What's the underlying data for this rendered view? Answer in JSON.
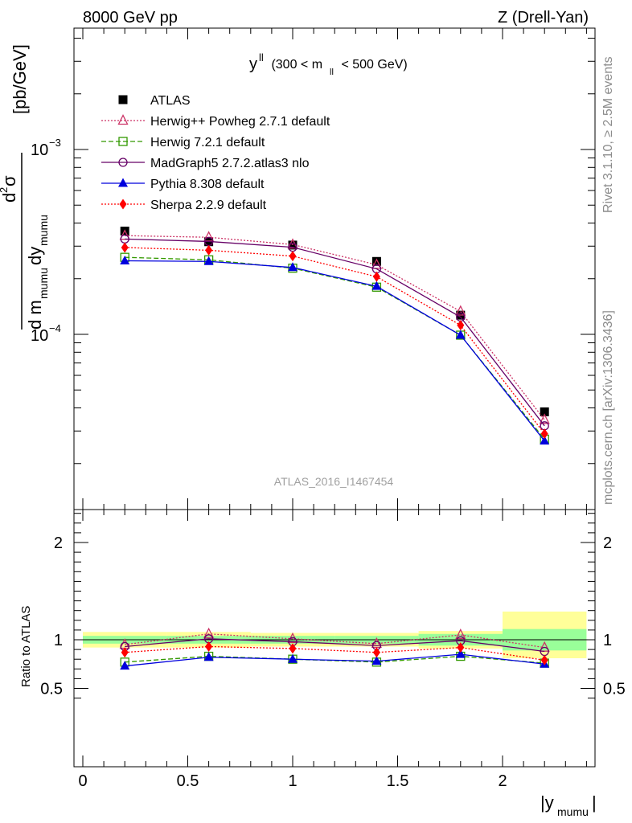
{
  "header": {
    "left": "8000 GeV pp",
    "right": "Z (Drell-Yan)"
  },
  "side": {
    "rivet": "Rivet 3.1.10, ≥ 2.5M events",
    "mcplots": "mcplots.cern.ch [arXiv:1306.3436]"
  },
  "inner_title": {
    "main": "y",
    "sup": "ll",
    "range_a": " (300 < m",
    "range_sub": "ll",
    "range_b": " < 500 GeV)"
  },
  "ylabel": {
    "unit": "[pb/GeV]"
  },
  "ratio_ylabel": "Ratio to ATLAS",
  "watermark": "ATLAS_2016_I1467454",
  "colors": {
    "band_outer": "#ffff99",
    "band_inner": "#99ff99"
  },
  "chart_data": [
    {
      "type": "line",
      "title": "",
      "yscale": "log",
      "xlim": [
        -0.05,
        2.45
      ],
      "ylim": [
        1.5e-05,
        0.0045
      ],
      "ytick_labels": [
        "10^-4",
        "10^-3"
      ],
      "x": [
        0.2,
        0.6,
        1.0,
        1.4,
        1.8,
        2.2
      ],
      "series": [
        {
          "name": "ATLAS",
          "color": "#000000",
          "marker": "square-filled",
          "line": "none",
          "values": [
            0.000362,
            0.000317,
            0.000304,
            0.000248,
            0.000127,
            3.81e-05
          ]
        },
        {
          "name": "Herwig++ Powheg 2.7.1 default",
          "color": "#cc3366",
          "marker": "triangle-open",
          "line": "dotted",
          "values": [
            0.000342,
            0.000335,
            0.000306,
            0.000238,
            0.000133,
            3.45e-05
          ]
        },
        {
          "name": "Herwig 7.2.1 default",
          "color": "#339900",
          "marker": "square-open",
          "line": "dashed",
          "values": [
            0.000261,
            0.000253,
            0.000228,
            0.00018,
            9.9e-05,
            2.71e-05
          ]
        },
        {
          "name": "MadGraph5 2.7.2.atlas3 nlo",
          "color": "#660066",
          "marker": "circle-open",
          "line": "solid",
          "values": [
            0.000328,
            0.000318,
            0.000296,
            0.000226,
            0.000124,
            3.2e-05
          ]
        },
        {
          "name": "Pythia 8.308 default",
          "color": "#0000dd",
          "marker": "triangle-filled",
          "line": "solid",
          "values": [
            0.00025,
            0.000248,
            0.00023,
            0.000182,
            9.9e-05,
            2.65e-05
          ]
        },
        {
          "name": "Sherpa 2.2.9 default",
          "color": "#ff0000",
          "marker": "diamond-filled",
          "line": "dotted",
          "values": [
            0.000295,
            0.000285,
            0.000265,
            0.000205,
            0.000112,
            2.9e-05
          ]
        }
      ]
    },
    {
      "type": "line",
      "title": "",
      "ylabel": "Ratio to ATLAS",
      "xlabel": "|y_mumu|",
      "xlim": [
        -0.05,
        2.45
      ],
      "ylim": [
        0.35,
        2.35
      ],
      "x_ticks": [
        0,
        0.5,
        1,
        1.5,
        2
      ],
      "x_tick_labels": [
        "0",
        "0.5",
        "1",
        "1.5",
        "2"
      ],
      "y_ticks": [
        0.5,
        1,
        2
      ],
      "y_tick_labels": [
        "0.5",
        "1",
        "2"
      ],
      "bins": [
        [
          0,
          0.4
        ],
        [
          0.4,
          0.8
        ],
        [
          0.8,
          1.2
        ],
        [
          1.2,
          1.6
        ],
        [
          1.6,
          2.0
        ],
        [
          2.0,
          2.4
        ]
      ],
      "band_outer": [
        [
          0.92,
          1.08
        ],
        [
          0.92,
          1.08
        ],
        [
          0.93,
          1.07
        ],
        [
          0.93,
          1.07
        ],
        [
          0.91,
          1.09
        ],
        [
          0.81,
          1.29
        ]
      ],
      "band_inner": [
        [
          0.96,
          1.04
        ],
        [
          0.96,
          1.04
        ],
        [
          0.96,
          1.04
        ],
        [
          0.96,
          1.04
        ],
        [
          0.94,
          1.06
        ],
        [
          0.89,
          1.11
        ]
      ],
      "x": [
        0.2,
        0.6,
        1.0,
        1.4,
        1.8,
        2.2
      ],
      "series": [
        {
          "name": "Herwig++ Powheg 2.7.1 default",
          "color": "#cc3366",
          "marker": "triangle-open",
          "line": "dotted",
          "values": [
            0.95,
            1.06,
            1.01,
            0.96,
            1.05,
            0.92
          ]
        },
        {
          "name": "Herwig 7.2.1 default",
          "color": "#339900",
          "marker": "square-open",
          "line": "dashed",
          "values": [
            0.77,
            0.83,
            0.8,
            0.77,
            0.83,
            0.76
          ]
        },
        {
          "name": "MadGraph5 2.7.2.atlas3 nlo",
          "color": "#660066",
          "marker": "circle-open",
          "line": "solid",
          "values": [
            0.93,
            1.01,
            0.98,
            0.94,
            0.99,
            0.88
          ]
        },
        {
          "name": "Pythia 8.308 default",
          "color": "#0000dd",
          "marker": "triangle-filled",
          "line": "solid",
          "values": [
            0.73,
            0.82,
            0.8,
            0.78,
            0.85,
            0.75
          ]
        },
        {
          "name": "Sherpa 2.2.9 default",
          "color": "#ff0000",
          "marker": "diamond-filled",
          "line": "dotted",
          "values": [
            0.87,
            0.93,
            0.91,
            0.87,
            0.92,
            0.79
          ]
        }
      ]
    }
  ]
}
